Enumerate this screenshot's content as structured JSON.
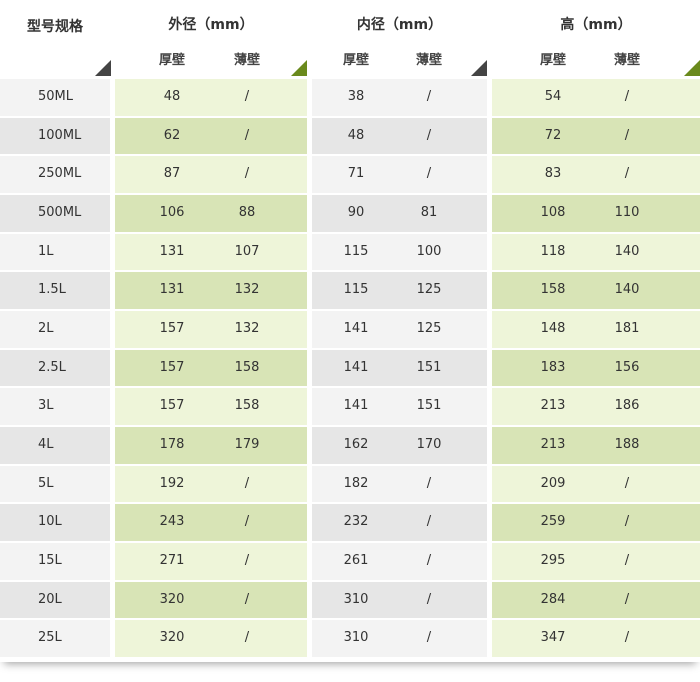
{
  "header": {
    "model": "型号规格",
    "outer": "外径（mm）",
    "inner": "内径（mm）",
    "height": "高（mm）",
    "thick": "厚壁",
    "thin": "薄壁"
  },
  "colors": {
    "green_light": "#eef5d9",
    "green_dark": "#d8e4b6",
    "gray_light": "#f3f3f3",
    "gray_dark": "#e6e6e6"
  },
  "rows": [
    [
      "50ML",
      "48",
      "/",
      "38",
      "/",
      "54",
      "/"
    ],
    [
      "100ML",
      "62",
      "/",
      "48",
      "/",
      "72",
      "/"
    ],
    [
      "250ML",
      "87",
      "/",
      "71",
      "/",
      "83",
      "/"
    ],
    [
      "500ML",
      "106",
      "88",
      "90",
      "81",
      "108",
      "110"
    ],
    [
      "1L",
      "131",
      "107",
      "115",
      "100",
      "118",
      "140"
    ],
    [
      "1.5L",
      "131",
      "132",
      "115",
      "125",
      "158",
      "140"
    ],
    [
      "2L",
      "157",
      "132",
      "141",
      "125",
      "148",
      "181"
    ],
    [
      "2.5L",
      "157",
      "158",
      "141",
      "151",
      "183",
      "156"
    ],
    [
      "3L",
      "157",
      "158",
      "141",
      "151",
      "213",
      "186"
    ],
    [
      "4L",
      "178",
      "179",
      "162",
      "170",
      "213",
      "188"
    ],
    [
      "5L",
      "192",
      "/",
      "182",
      "/",
      "209",
      "/"
    ],
    [
      "10L",
      "243",
      "/",
      "232",
      "/",
      "259",
      "/"
    ],
    [
      "15L",
      "271",
      "/",
      "261",
      "/",
      "295",
      "/"
    ],
    [
      "20L",
      "320",
      "/",
      "310",
      "/",
      "284",
      "/"
    ],
    [
      "25L",
      "320",
      "/",
      "310",
      "/",
      "347",
      "/"
    ]
  ]
}
